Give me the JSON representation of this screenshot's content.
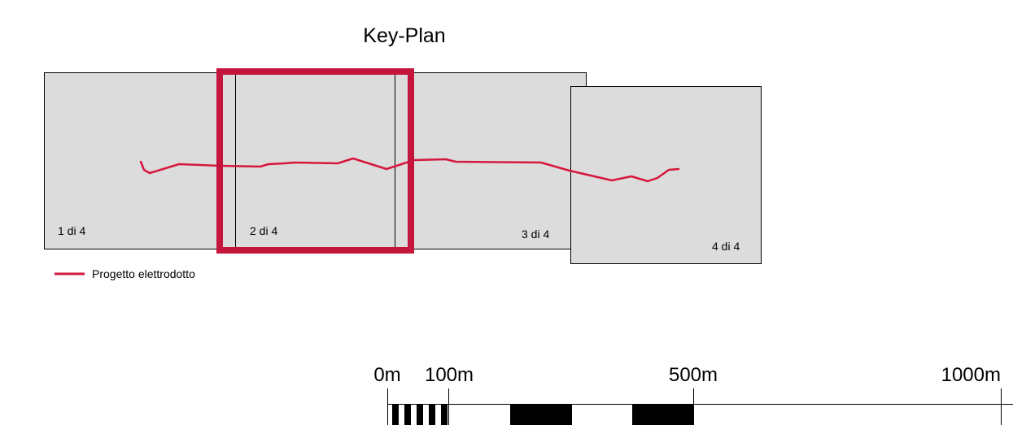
{
  "title": "Key-Plan",
  "sheets": [
    {
      "label": "1 di 4"
    },
    {
      "label": "2 di 4"
    },
    {
      "label": "3 di 4"
    },
    {
      "label": "4 di 4"
    }
  ],
  "legend": {
    "line_label": "Progetto elettrodotto"
  },
  "scale_bar": {
    "labels": [
      "0m",
      "100m",
      "500m",
      "1000m"
    ]
  },
  "colors": {
    "sheet_fill": "#dcdcdc",
    "sheet_stroke": "#000000",
    "route": "#d6173e",
    "highlight": "#c4163c",
    "scale_black": "#000000"
  }
}
